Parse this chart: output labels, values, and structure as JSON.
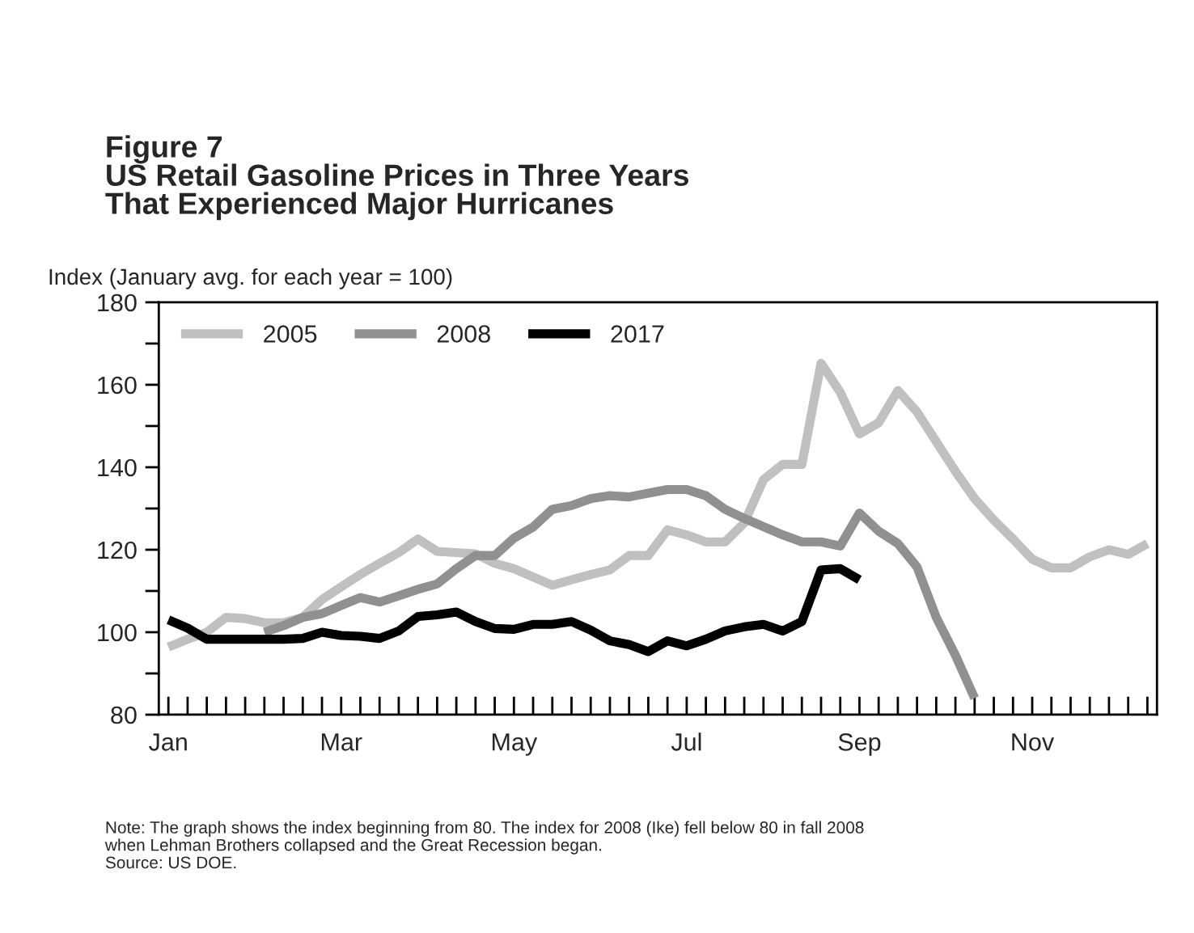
{
  "chart_data": {
    "type": "line",
    "title": "Figure 7\nUS Retail Gasoline Prices in Three Years\nThat Experienced Major Hurricanes",
    "ylabel": "Index (January avg. for each year = 100)",
    "categories": [
      "Jan",
      null,
      null,
      null,
      null,
      null,
      null,
      null,
      null,
      "Mar",
      null,
      null,
      null,
      null,
      null,
      null,
      null,
      null,
      "May",
      null,
      null,
      null,
      null,
      null,
      null,
      null,
      null,
      "Jul",
      null,
      null,
      null,
      null,
      null,
      null,
      null,
      null,
      "Sep",
      null,
      null,
      null,
      null,
      null,
      null,
      null,
      null,
      "Nov",
      null,
      null,
      null,
      null,
      null,
      null
    ],
    "series": [
      {
        "name": "2005",
        "color": "#c0c0c0",
        "values": [
          96.4,
          98.3,
          100,
          103.6,
          103.3,
          102.3,
          102.3,
          103.6,
          107.9,
          111,
          114,
          116.7,
          119.3,
          122.6,
          119.6,
          119.3,
          119,
          116.7,
          115.4,
          113.4,
          111.4,
          112.7,
          114,
          115.1,
          118.6,
          118.6,
          124.8,
          123.6,
          121.9,
          121.9,
          126.5,
          137,
          140.7,
          140.7,
          165.2,
          158.2,
          148.1,
          150.8,
          158.6,
          153.4,
          146.2,
          139,
          132.4,
          127.2,
          122.6,
          117.7,
          115.6,
          115.6,
          118.3,
          120,
          118.9,
          121.5
        ]
      },
      {
        "name": "2008",
        "color": "#909090",
        "values": [
          null,
          null,
          null,
          null,
          null,
          100,
          101.6,
          103.6,
          104.5,
          106.5,
          108.4,
          107.3,
          108.8,
          110.4,
          111.7,
          115.4,
          118.6,
          118.6,
          122.8,
          125.5,
          129.8,
          130.7,
          132.4,
          133.1,
          132.8,
          133.7,
          134.6,
          134.6,
          133.1,
          129.8,
          127.6,
          125.6,
          123.6,
          121.9,
          121.9,
          120.9,
          128.9,
          124.5,
          121.5,
          115.8,
          103.6,
          94.4,
          84,
          null,
          null,
          null,
          null,
          null,
          null,
          null,
          null,
          null
        ]
      },
      {
        "name": "2017",
        "color": "#000000",
        "values": [
          103,
          101,
          98.3,
          98.3,
          98.3,
          98.3,
          98.3,
          98.5,
          100,
          99.2,
          99,
          98.5,
          100.3,
          103.8,
          104.2,
          104.9,
          102.6,
          100.9,
          100.7,
          101.9,
          101.9,
          102.6,
          100.5,
          97.9,
          97,
          95.3,
          97.9,
          96.7,
          98.3,
          100.3,
          101.3,
          101.9,
          100.3,
          102.6,
          115.1,
          115.4,
          112.7,
          null,
          null,
          null,
          null,
          null,
          null,
          null,
          null,
          null,
          null,
          null,
          null,
          null,
          null,
          null
        ]
      }
    ],
    "ylim": [
      80,
      180
    ],
    "yticks": [
      80,
      {
        "value": 90,
        "label": null
      },
      100,
      {
        "value": 110,
        "label": null
      },
      120,
      {
        "value": 130,
        "label": null
      },
      140,
      {
        "value": 150,
        "label": null
      },
      160,
      {
        "value": 170,
        "label": null
      },
      180
    ],
    "grid": false,
    "legend": "top left",
    "marker": "none",
    "line_style": "solid",
    "annotations": [
      "Note: The graph shows the index beginning from 80. The index for 2008 (Ike) fell below 80 in fall 2008\nwhen Lehman Brothers collapsed and the Great Recession began.\nSource: US DOE."
    ]
  }
}
